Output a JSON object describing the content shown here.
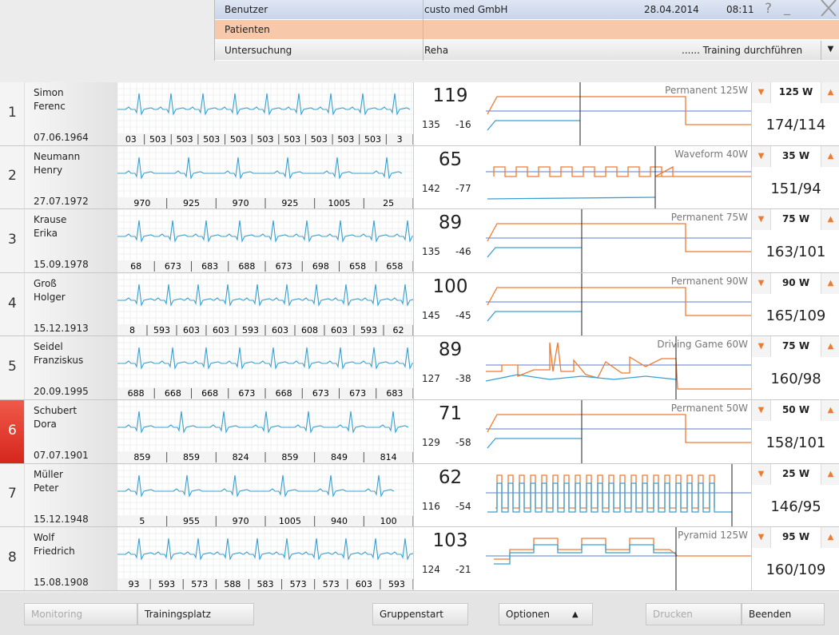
{
  "header": {
    "user_label": "Benutzer",
    "user": "custo med GmbH",
    "date": "28.04.2014",
    "time": "08:11",
    "help": "?",
    "minimize": "_",
    "patients_label": "Patienten",
    "exam_label": "Untersuchung",
    "exam": "Reha",
    "action": "...... Training durchführen"
  },
  "patients": [
    {
      "number": "1",
      "last": "Simon",
      "first": "Ferenc",
      "birth": "07.06.1964",
      "rr": [
        "03",
        "503",
        "503",
        "503",
        "503",
        "503",
        "503",
        "503",
        "503",
        "503",
        "3"
      ],
      "hr": "119",
      "sys": "135",
      "diff": "-16",
      "program": "Permanent 125W",
      "load": "125 W",
      "bp": "174/114"
    },
    {
      "number": "2",
      "last": "Neumann",
      "first": "Henry",
      "birth": "27.07.1972",
      "rr": [
        "970",
        "925",
        "970",
        "925",
        "1005",
        "25"
      ],
      "hr": "65",
      "sys": "142",
      "diff": "-77",
      "program": "Waveform 40W",
      "load": "35 W",
      "bp": "151/94"
    },
    {
      "number": "3",
      "last": "Krause",
      "first": "Erika",
      "birth": "15.09.1978",
      "rr": [
        "68",
        "673",
        "683",
        "688",
        "673",
        "698",
        "658",
        "658"
      ],
      "hr": "89",
      "sys": "135",
      "diff": "-46",
      "program": "Permanent 75W",
      "load": "75 W",
      "bp": "163/101"
    },
    {
      "number": "4",
      "last": "Groß",
      "first": "Holger",
      "birth": "15.12.1913",
      "rr": [
        "8",
        "593",
        "603",
        "603",
        "593",
        "603",
        "608",
        "603",
        "593",
        "62"
      ],
      "hr": "100",
      "sys": "145",
      "diff": "-45",
      "program": "Permanent 90W",
      "load": "90 W",
      "bp": "165/109"
    },
    {
      "number": "5",
      "last": "Seidel",
      "first": "Franziskus",
      "birth": "20.09.1995",
      "rr": [
        "688",
        "668",
        "668",
        "673",
        "668",
        "673",
        "673",
        "683"
      ],
      "hr": "89",
      "sys": "127",
      "diff": "-38",
      "program": "Driving Game 60W",
      "load": "75 W",
      "bp": "160/98"
    },
    {
      "number": "6",
      "last": "Schubert",
      "first": "Dora",
      "birth": "07.07.1901",
      "rr": [
        "859",
        "859",
        "824",
        "859",
        "849",
        "814"
      ],
      "hr": "71",
      "sys": "129",
      "diff": "-58",
      "program": "Permanent 50W",
      "load": "50 W",
      "bp": "158/101"
    },
    {
      "number": "7",
      "last": "Müller",
      "first": "Peter",
      "birth": "15.12.1948",
      "rr": [
        "5",
        "955",
        "970",
        "1005",
        "940",
        "100"
      ],
      "hr": "62",
      "sys": "116",
      "diff": "-54",
      "load": "25 W",
      "bp": "146/95"
    },
    {
      "number": "8",
      "last": "Wolf",
      "first": "Friedrich",
      "birth": "15.08.1908",
      "rr": [
        "93",
        "593",
        "573",
        "588",
        "583",
        "573",
        "573",
        "603",
        "593"
      ],
      "hr": "103",
      "sys": "124",
      "diff": "-21",
      "program": "Pyramid 125W",
      "load": "95 W",
      "bp": "160/109"
    }
  ],
  "footer": {
    "monitoring": "Monitoring",
    "training": "Trainingsplatz",
    "group_start": "Gruppenstart",
    "options": "Optionen",
    "print": "Drucken",
    "quit": "Beenden"
  }
}
